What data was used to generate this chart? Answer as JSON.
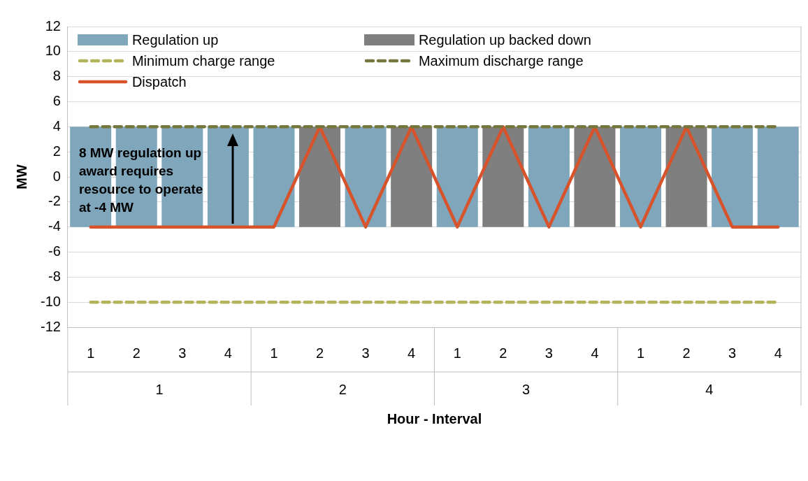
{
  "chart_data": {
    "type": "bar",
    "xlabel": "Hour - Interval",
    "ylabel": "MW",
    "categories": [
      "1",
      "2",
      "3",
      "4",
      "1",
      "2",
      "3",
      "4",
      "1",
      "2",
      "3",
      "4",
      "1",
      "2",
      "3",
      "4"
    ],
    "series": [
      {
        "name": "Regulation up",
        "color": "#7fa6bb",
        "values": [
          8,
          8,
          8,
          8,
          8,
          null,
          8,
          null,
          8,
          null,
          8,
          null,
          8,
          null,
          8,
          8
        ],
        "base": [
          -4,
          -4,
          -4,
          -4,
          -4,
          null,
          -4,
          null,
          -4,
          null,
          -4,
          null,
          -4,
          null,
          -4,
          -4
        ]
      },
      {
        "name": "Regulation up backed down",
        "color": "#7f7f7f",
        "values": [
          null,
          null,
          null,
          null,
          null,
          8,
          null,
          8,
          null,
          8,
          null,
          8,
          null,
          8,
          null,
          null
        ],
        "base": [
          null,
          null,
          null,
          null,
          null,
          -4,
          null,
          -4,
          null,
          -4,
          null,
          -4,
          null,
          -4,
          null,
          null
        ]
      },
      {
        "name": "Minimum charge range",
        "type": "line",
        "color": "#b3b35a",
        "line_style": "dashed",
        "values": [
          -10,
          -10,
          -10,
          -10,
          -10,
          -10,
          -10,
          -10,
          -10,
          -10,
          -10,
          -10,
          -10,
          -10,
          -10,
          -10
        ]
      },
      {
        "name": "Maximum discharge range",
        "type": "line",
        "color": "#76773f",
        "line_style": "dashed",
        "values": [
          4,
          4,
          4,
          4,
          4,
          4,
          4,
          4,
          4,
          4,
          4,
          4,
          4,
          4,
          4,
          4
        ]
      },
      {
        "name": "Dispatch",
        "type": "line",
        "color": "#d6532c",
        "line_style": "solid",
        "values": [
          -4,
          -4,
          -4,
          -4,
          -4,
          4,
          -4,
          4,
          -4,
          4,
          -4,
          4,
          -4,
          4,
          -4,
          -4
        ]
      }
    ],
    "ylim": [
      -12,
      12
    ],
    "yticks": [
      -12,
      -10,
      -8,
      -6,
      -4,
      -2,
      0,
      2,
      4,
      6,
      8,
      10,
      12
    ],
    "grid": "y",
    "legend": "top left",
    "marker": "none",
    "annotations": [
      "8 MW regulation up award requires resource to operate at -4 MW",
      "1",
      "2",
      "3",
      "4"
    ]
  }
}
